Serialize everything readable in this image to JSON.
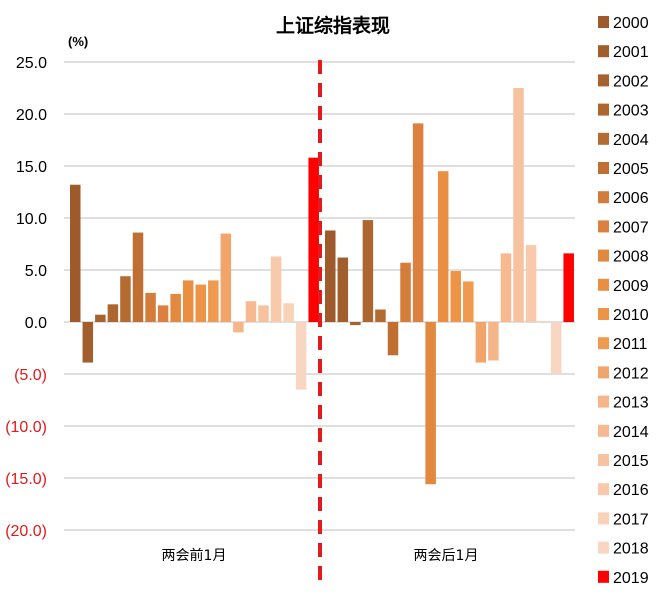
{
  "chart_data": {
    "type": "bar",
    "title": "上证综指表现",
    "unit_label": "(%)",
    "categories": [
      "两会前1月",
      "两会后1月"
    ],
    "ylim": [
      -20,
      25
    ],
    "yticks": [
      "25.0",
      "20.0",
      "15.0",
      "10.0",
      "5.0",
      "0.0",
      "(5.0)",
      "(10.0)",
      "(15.0)",
      "(20.0)"
    ],
    "ytick_values": [
      25,
      20,
      15,
      10,
      5,
      0,
      -5,
      -10,
      -15,
      -20
    ],
    "grid": true,
    "legend_position": "right",
    "divider_color": "#e31a1c",
    "negative_tick_color": "#e31a1c",
    "series": [
      {
        "name": "2000",
        "color": "#9e5a2a",
        "values": [
          13.2,
          8.8
        ]
      },
      {
        "name": "2001",
        "color": "#a25e2c",
        "values": [
          -3.9,
          6.2
        ]
      },
      {
        "name": "2002",
        "color": "#a8622e",
        "values": [
          0.7,
          -0.3
        ]
      },
      {
        "name": "2003",
        "color": "#ad6630",
        "values": [
          1.7,
          9.8
        ]
      },
      {
        "name": "2004",
        "color": "#b36b32",
        "values": [
          4.4,
          1.2
        ]
      },
      {
        "name": "2005",
        "color": "#c06f33",
        "values": [
          8.6,
          -3.2
        ]
      },
      {
        "name": "2006",
        "color": "#d47c3a",
        "values": [
          2.8,
          5.7
        ]
      },
      {
        "name": "2007",
        "color": "#dc8040",
        "values": [
          1.6,
          19.1
        ]
      },
      {
        "name": "2008",
        "color": "#e2883f",
        "values": [
          2.7,
          -15.6
        ]
      },
      {
        "name": "2009",
        "color": "#ea8f42",
        "values": [
          4.0,
          14.5
        ]
      },
      {
        "name": "2010",
        "color": "#ee9447",
        "values": [
          3.6,
          4.9
        ]
      },
      {
        "name": "2011",
        "color": "#f09a50",
        "values": [
          4.0,
          3.9
        ]
      },
      {
        "name": "2012",
        "color": "#f2a56a",
        "values": [
          8.5,
          -3.9
        ]
      },
      {
        "name": "2013",
        "color": "#f5b68a",
        "values": [
          -1.0,
          -3.7
        ]
      },
      {
        "name": "2014",
        "color": "#f6b990",
        "values": [
          2.0,
          6.6
        ]
      },
      {
        "name": "2015",
        "color": "#f7c2a0",
        "values": [
          1.6,
          22.5
        ]
      },
      {
        "name": "2016",
        "color": "#f8c9aa",
        "values": [
          6.3,
          7.4
        ]
      },
      {
        "name": "2017",
        "color": "#f9d3b8",
        "values": [
          1.8,
          0.1
        ]
      },
      {
        "name": "2018",
        "color": "#f8d6c2",
        "values": [
          -6.5,
          -5.0
        ]
      },
      {
        "name": "2019",
        "color": "#ff0000",
        "values": [
          15.8,
          6.6
        ]
      }
    ]
  }
}
